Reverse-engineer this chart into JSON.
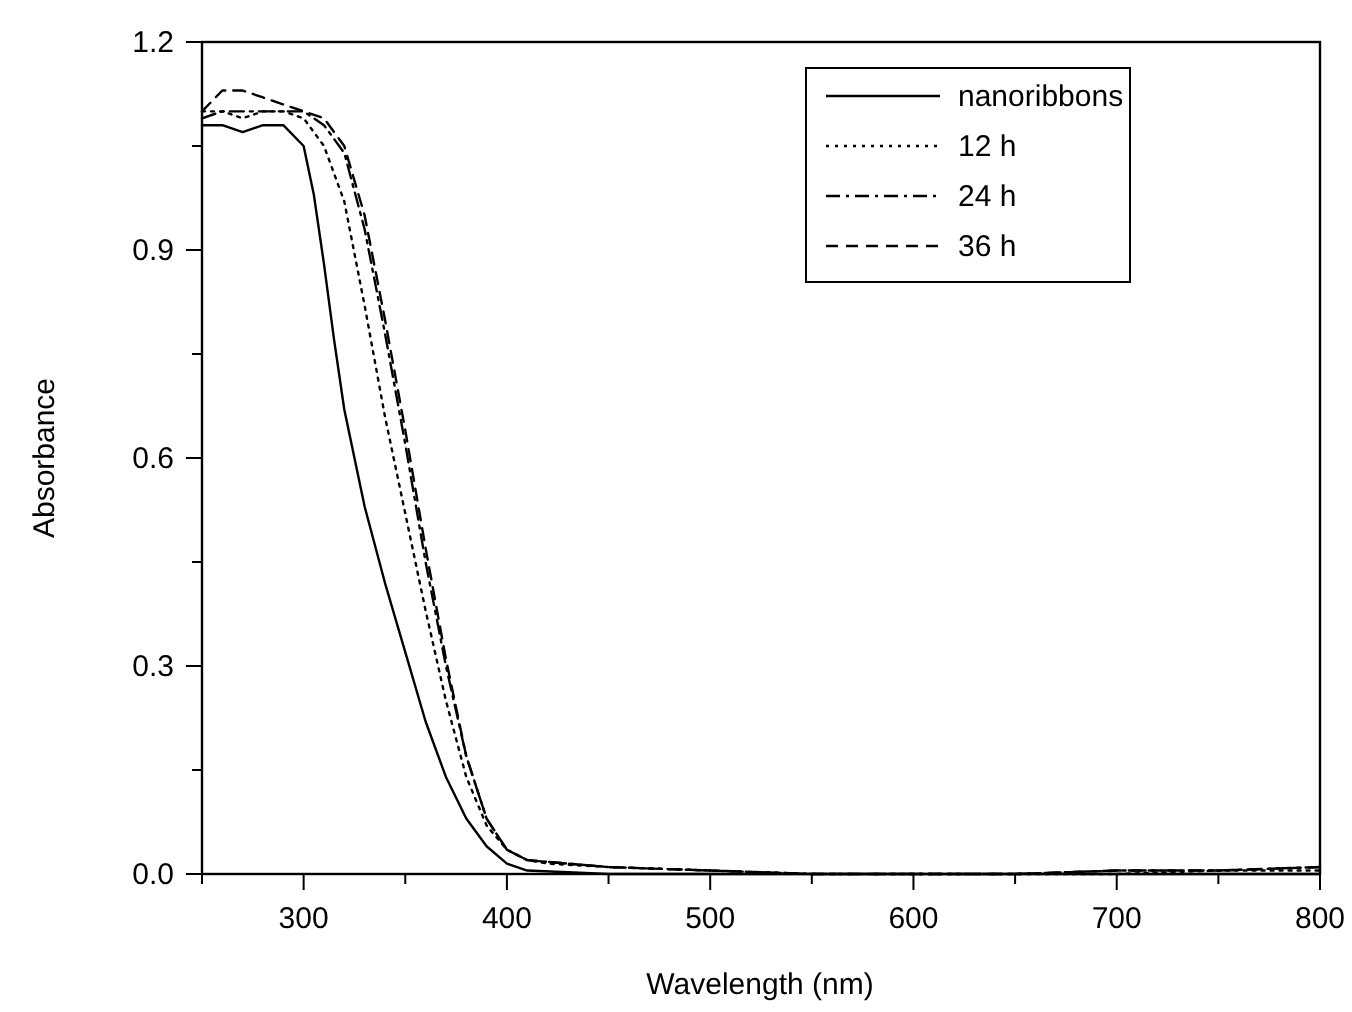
{
  "chart_data": {
    "type": "line",
    "xlabel": "Wavelength (nm)",
    "ylabel": "Absorbance",
    "xlim": [
      250,
      800
    ],
    "ylim": [
      0,
      1.2
    ],
    "xticks": [
      {
        "value": 250,
        "label": null
      },
      300,
      {
        "value": 350,
        "label": null
      },
      400,
      {
        "value": 450,
        "label": null
      },
      500,
      {
        "value": 550,
        "label": null
      },
      600,
      {
        "value": 650,
        "label": null
      },
      700,
      {
        "value": 750,
        "label": null
      },
      800
    ],
    "yticks": [
      {
        "value": 0,
        "label": "0.0"
      },
      {
        "value": 0.15,
        "label": null
      },
      {
        "value": 0.3,
        "label": "0.3"
      },
      {
        "value": 0.45,
        "label": null
      },
      {
        "value": 0.6,
        "label": "0.6"
      },
      {
        "value": 0.75,
        "label": null
      },
      {
        "value": 0.9,
        "label": "0.9"
      },
      {
        "value": 1.05,
        "label": null
      },
      {
        "value": 1.2,
        "label": "1.2"
      }
    ],
    "grid": false,
    "legend": "top right",
    "marker": "none",
    "series": [
      {
        "name": "nanoribbons",
        "color": "#000000",
        "line_style": "solid",
        "x": [
          250,
          260,
          270,
          280,
          290,
          300,
          305,
          310,
          315,
          320,
          330,
          340,
          350,
          360,
          370,
          380,
          390,
          400,
          410,
          450,
          500,
          550,
          600,
          650,
          700,
          750,
          800
        ],
        "values": [
          1.08,
          1.08,
          1.07,
          1.08,
          1.08,
          1.05,
          0.98,
          0.88,
          0.77,
          0.67,
          0.53,
          0.42,
          0.32,
          0.22,
          0.14,
          0.08,
          0.04,
          0.015,
          0.005,
          0.0,
          0.0,
          0.0,
          0.0,
          0.0,
          0.0,
          0.0,
          0.0
        ]
      },
      {
        "name": "12 h",
        "color": "#000000",
        "line_style": "dotted",
        "x": [
          250,
          260,
          270,
          280,
          290,
          300,
          310,
          320,
          330,
          340,
          350,
          360,
          370,
          380,
          390,
          400,
          410,
          420,
          450,
          500,
          550,
          600,
          650,
          700,
          750,
          800
        ],
        "values": [
          1.1,
          1.1,
          1.09,
          1.1,
          1.1,
          1.09,
          1.05,
          0.97,
          0.82,
          0.66,
          0.52,
          0.38,
          0.25,
          0.14,
          0.07,
          0.035,
          0.02,
          0.015,
          0.01,
          0.005,
          0.0,
          0.0,
          0.0,
          0.0,
          0.005,
          0.005
        ]
      },
      {
        "name": "24 h",
        "color": "#000000",
        "line_style": "dashdot",
        "x": [
          250,
          260,
          270,
          280,
          290,
          300,
          310,
          320,
          330,
          340,
          350,
          360,
          370,
          380,
          390,
          400,
          410,
          450,
          500,
          550,
          600,
          650,
          700,
          750,
          800
        ],
        "values": [
          1.09,
          1.1,
          1.1,
          1.1,
          1.1,
          1.1,
          1.08,
          1.04,
          0.93,
          0.78,
          0.62,
          0.45,
          0.3,
          0.17,
          0.08,
          0.035,
          0.02,
          0.01,
          0.005,
          0.0,
          0.0,
          0.0,
          0.005,
          0.005,
          0.01
        ]
      },
      {
        "name": "36 h",
        "color": "#000000",
        "line_style": "dashed",
        "x": [
          250,
          260,
          270,
          280,
          290,
          300,
          310,
          320,
          330,
          340,
          350,
          360,
          370,
          380,
          390,
          400,
          410,
          450,
          500,
          550,
          600,
          650,
          700,
          750,
          800
        ],
        "values": [
          1.1,
          1.13,
          1.13,
          1.12,
          1.11,
          1.1,
          1.09,
          1.05,
          0.95,
          0.8,
          0.64,
          0.47,
          0.31,
          0.17,
          0.08,
          0.035,
          0.02,
          0.01,
          0.005,
          0.0,
          0.0,
          0.0,
          0.005,
          0.005,
          0.01
        ]
      }
    ]
  }
}
